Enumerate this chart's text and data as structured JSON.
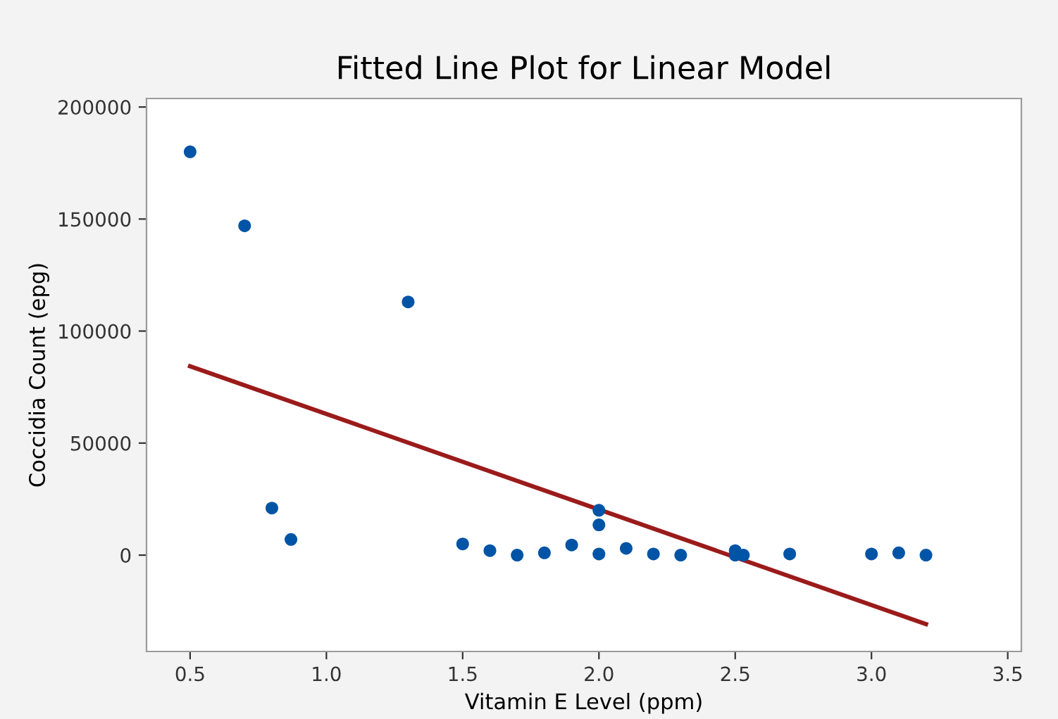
{
  "chart_data": {
    "type": "scatter",
    "title": "Fitted Line Plot for Linear Model",
    "xlabel": "Vitamin E Level (ppm)",
    "ylabel": "Coccidia Count (epg)",
    "series": [
      {
        "color": "#0054a6",
        "marker": "circle",
        "x": [
          0.5,
          0.7,
          0.8,
          0.87,
          1.3,
          1.5,
          1.6,
          1.7,
          1.8,
          1.9,
          2.0,
          2.0,
          2.0,
          2.1,
          2.2,
          2.3,
          2.5,
          2.5,
          2.53,
          2.7,
          3.0,
          3.1,
          3.2
        ],
        "values": [
          180000,
          147000,
          21000,
          7000,
          113000,
          5000,
          2000,
          0,
          1000,
          4500,
          20000,
          13500,
          500,
          3000,
          500,
          0,
          2000,
          0,
          0,
          500,
          500,
          1000,
          0
        ]
      },
      {
        "type": "line",
        "color": "#9b1b1b",
        "marker": "none",
        "x": [
          0.5,
          3.2
        ],
        "values": [
          84300,
          -30800
        ]
      }
    ],
    "xlim": [
      0.34,
      3.55
    ],
    "ylim": [
      -43000,
      203800
    ],
    "xticks": [
      {
        "value": 0.5,
        "label": "0.5"
      },
      {
        "value": 1.0,
        "label": "1.0"
      },
      {
        "value": 1.5,
        "label": "1.5"
      },
      {
        "value": 2.0,
        "label": "2.0"
      },
      {
        "value": 2.5,
        "label": "2.5"
      },
      {
        "value": 3.0,
        "label": "3.0"
      },
      {
        "value": 3.5,
        "label": "3.5"
      }
    ],
    "yticks": [
      0,
      50000,
      100000,
      150000,
      200000
    ],
    "grid": false,
    "legend": false
  }
}
